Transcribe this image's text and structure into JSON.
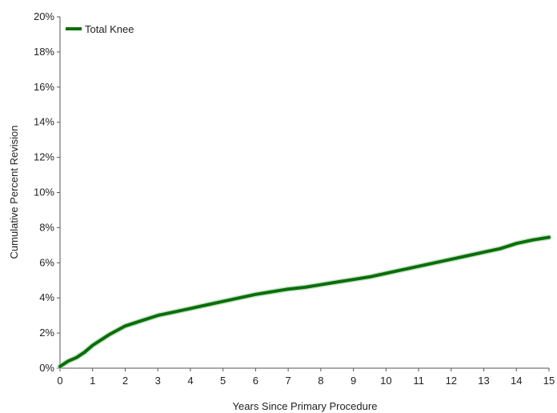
{
  "chart_data": {
    "type": "line",
    "title": "",
    "xlabel": "Years Since Primary Procedure",
    "ylabel": "Cumulative Percent Revision",
    "xlim": [
      0,
      15
    ],
    "ylim": [
      0,
      20
    ],
    "x_ticks": [
      "0",
      "1",
      "2",
      "3",
      "4",
      "5",
      "6",
      "7",
      "8",
      "9",
      "10",
      "11",
      "12",
      "13",
      "14",
      "15"
    ],
    "y_ticks": [
      "0%",
      "2%",
      "4%",
      "6%",
      "8%",
      "10%",
      "12%",
      "14%",
      "16%",
      "18%",
      "20%"
    ],
    "grid": false,
    "legend_position": "top-left",
    "series": [
      {
        "name": "Total Knee",
        "color": "#0a6e0a",
        "x": [
          0,
          0.25,
          0.5,
          0.75,
          1,
          1.5,
          2,
          2.5,
          3,
          3.5,
          4,
          4.5,
          5,
          5.5,
          6,
          6.5,
          7,
          7.5,
          8,
          8.5,
          9,
          9.5,
          10,
          10.5,
          11,
          11.5,
          12,
          12.5,
          13,
          13.5,
          14,
          14.5,
          15
        ],
        "values": [
          0.1,
          0.4,
          0.6,
          0.9,
          1.3,
          1.9,
          2.4,
          2.7,
          3.0,
          3.2,
          3.4,
          3.6,
          3.8,
          4.0,
          4.2,
          4.35,
          4.5,
          4.6,
          4.75,
          4.9,
          5.05,
          5.2,
          5.4,
          5.6,
          5.8,
          6.0,
          6.2,
          6.4,
          6.6,
          6.8,
          7.1,
          7.3,
          7.45
        ]
      }
    ]
  }
}
